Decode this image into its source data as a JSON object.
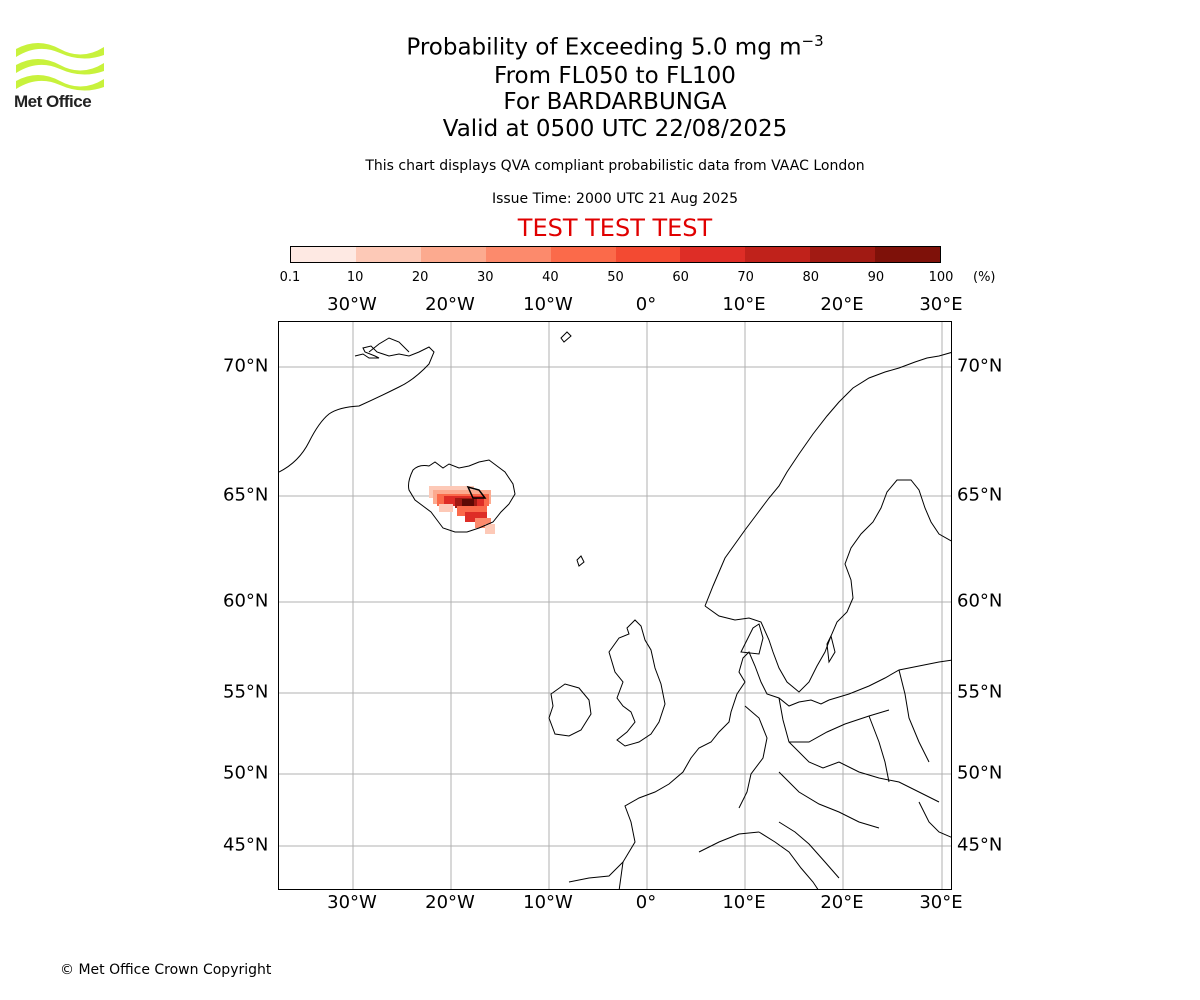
{
  "logo": {
    "text": "Met Office",
    "color": "#c8f23c"
  },
  "title": {
    "main": "Probability of Exceeding 5.0 mg m",
    "main_sup": "−3",
    "levels": "From FL050 to FL100",
    "volcano": "For BARDARBUNGA",
    "valid": "Valid at 0500 UTC 22/08/2025"
  },
  "description": "This chart displays QVA compliant probabilistic data from VAAC London",
  "issue_time": "Issue Time: 2000 UTC 21 Aug 2025",
  "test_label": "TEST TEST TEST",
  "colorbar": {
    "ticks": [
      "0.1",
      "10",
      "20",
      "30",
      "40",
      "50",
      "60",
      "70",
      "80",
      "90",
      "100"
    ],
    "unit": "(%)",
    "colors": [
      "#fee9e3",
      "#fdc9b7",
      "#fcaa8f",
      "#fc8a6c",
      "#fb6a4a",
      "#f34a32",
      "#de2d26",
      "#c0221b",
      "#a11a13",
      "#7e1109",
      "#5e0a05"
    ]
  },
  "map": {
    "lon_labels": [
      "30°W",
      "20°W",
      "10°W",
      "0°",
      "10°E",
      "20°E",
      "30°E"
    ],
    "lat_labels": [
      "70°N",
      "65°N",
      "60°N",
      "55°N",
      "50°N",
      "45°N"
    ],
    "plume": {
      "source": "Bardarbunga",
      "peak_probability_percent": 100
    }
  },
  "copyright": "© Met Office Crown Copyright"
}
